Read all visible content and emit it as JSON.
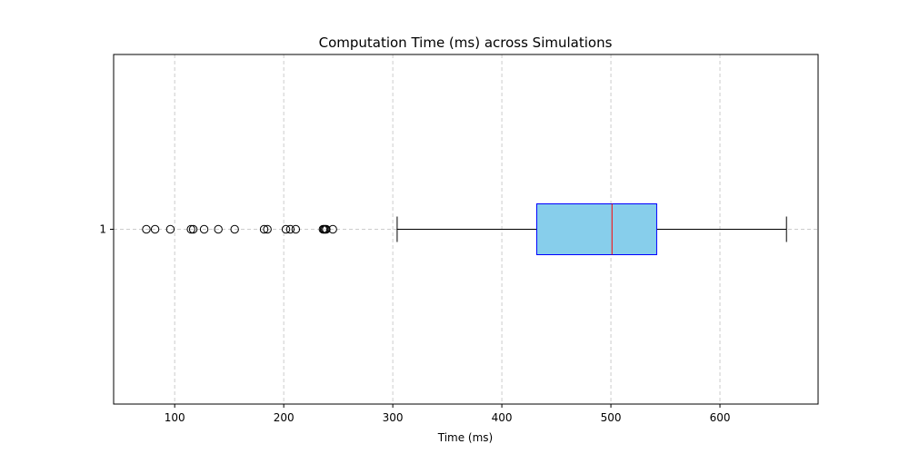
{
  "chart_data": {
    "type": "boxplot",
    "orientation": "horizontal",
    "title": "Computation Time (ms) across Simulations",
    "xlabel": "Time (ms)",
    "ylabel": "",
    "xlim": [
      44,
      690
    ],
    "xticks": [
      100,
      200,
      300,
      400,
      500,
      600
    ],
    "yticks": [
      "1"
    ],
    "grid": true,
    "series": [
      {
        "category": "1",
        "whisker_low": 304,
        "q1": 432,
        "median": 501,
        "q3": 542,
        "whisker_high": 661,
        "outliers": [
          74,
          82,
          96,
          115,
          117,
          127,
          140,
          155,
          182,
          185,
          202,
          206,
          211,
          236,
          237,
          238,
          239,
          245
        ]
      }
    ],
    "colors": {
      "box_fill": "#87ceeb",
      "box_edge": "#0000ff",
      "median": "#ff0000",
      "whisker": "#000000",
      "grid": "#cccccc",
      "outlier_edge": "#000000"
    }
  }
}
